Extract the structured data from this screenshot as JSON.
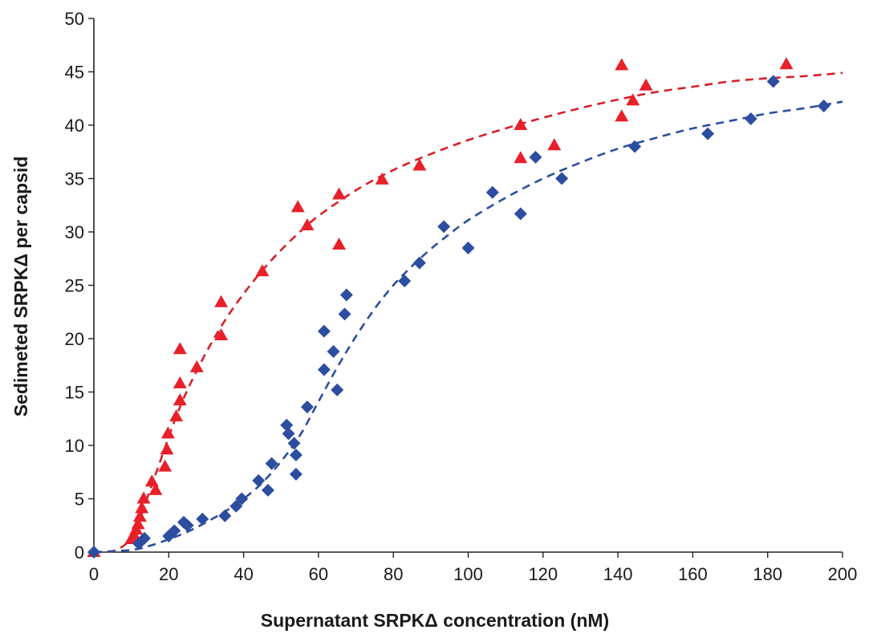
{
  "chart_data": {
    "type": "scatter",
    "title": "",
    "xlabel": "Supernatant SRPKΔ concentration  (nM)",
    "ylabel": "Sedimeted SRPKΔ per capsid",
    "xlim": [
      0,
      200
    ],
    "ylim": [
      0,
      50
    ],
    "xticks": [
      "0",
      "20",
      "40",
      "60",
      "80",
      "100",
      "120",
      "140",
      "160",
      "180",
      "200"
    ],
    "yticks": [
      "0",
      "5",
      "10",
      "15",
      "20",
      "25",
      "30",
      "35",
      "40",
      "45",
      "50"
    ],
    "grid": false,
    "legend": "none",
    "series": [
      {
        "marker": "triangle",
        "color": "#e8202a",
        "points": [
          [
            0,
            0
          ],
          [
            10,
            1.2
          ],
          [
            10.7,
            1.6
          ],
          [
            11.3,
            2.1
          ],
          [
            11.8,
            2.6
          ],
          [
            12.3,
            3.3
          ],
          [
            12.8,
            4.1
          ],
          [
            13.3,
            5.0
          ],
          [
            15.5,
            6.6
          ],
          [
            16.5,
            5.8
          ],
          [
            19,
            8.0
          ],
          [
            19.5,
            9.6
          ],
          [
            19.8,
            11.1
          ],
          [
            22,
            12.7
          ],
          [
            23,
            14.2
          ],
          [
            23,
            15.8
          ],
          [
            23,
            19.0
          ],
          [
            27.5,
            17.3
          ],
          [
            34,
            20.3
          ],
          [
            34,
            23.4
          ],
          [
            45,
            26.3
          ],
          [
            54.5,
            32.3
          ],
          [
            57,
            30.6
          ],
          [
            65.5,
            28.8
          ],
          [
            65.5,
            33.5
          ],
          [
            77,
            34.9
          ],
          [
            87,
            36.2
          ],
          [
            114,
            40.0
          ],
          [
            114,
            36.9
          ],
          [
            123,
            38.1
          ],
          [
            141,
            40.8
          ],
          [
            141,
            45.6
          ],
          [
            144,
            42.3
          ],
          [
            147.5,
            43.7
          ],
          [
            185,
            45.7
          ]
        ]
      },
      {
        "marker": "diamond",
        "color": "#2c4da0",
        "points": [
          [
            0,
            0
          ],
          [
            12,
            0.8
          ],
          [
            13.5,
            1.3
          ],
          [
            20,
            1.5
          ],
          [
            21.5,
            2.0
          ],
          [
            24,
            2.8
          ],
          [
            25,
            2.5
          ],
          [
            29,
            3.1
          ],
          [
            35,
            3.4
          ],
          [
            38,
            4.3
          ],
          [
            39.5,
            5.0
          ],
          [
            44,
            6.7
          ],
          [
            46.5,
            5.8
          ],
          [
            47.5,
            8.3
          ],
          [
            51.5,
            11.9
          ],
          [
            52,
            11.1
          ],
          [
            53.5,
            10.2
          ],
          [
            54,
            9.1
          ],
          [
            54,
            7.3
          ],
          [
            57,
            13.6
          ],
          [
            61.5,
            17.1
          ],
          [
            61.5,
            20.7
          ],
          [
            64,
            18.8
          ],
          [
            65,
            15.2
          ],
          [
            67,
            22.3
          ],
          [
            67.5,
            24.1
          ],
          [
            83,
            25.4
          ],
          [
            87,
            27.1
          ],
          [
            93.5,
            30.5
          ],
          [
            100,
            28.5
          ],
          [
            106.5,
            33.7
          ],
          [
            114,
            31.7
          ],
          [
            118,
            37.0
          ],
          [
            125,
            35.0
          ],
          [
            144.5,
            38.0
          ],
          [
            164,
            39.2
          ],
          [
            175.5,
            40.6
          ],
          [
            181.5,
            44.1
          ],
          [
            195,
            41.8
          ]
        ]
      }
    ],
    "fit_curves": [
      {
        "color": "#d8202a",
        "style": "dashed",
        "points": [
          [
            0,
            0
          ],
          [
            5,
            0.1
          ],
          [
            8,
            0.6
          ],
          [
            10,
            1.4
          ],
          [
            12,
            2.8
          ],
          [
            14,
            4.8
          ],
          [
            16,
            6.8
          ],
          [
            18,
            8.8
          ],
          [
            20,
            10.8
          ],
          [
            22,
            12.7
          ],
          [
            25,
            15.2
          ],
          [
            30,
            18.7
          ],
          [
            35,
            21.7
          ],
          [
            40,
            24.2
          ],
          [
            45,
            26.4
          ],
          [
            50,
            28.3
          ],
          [
            55,
            30.0
          ],
          [
            60,
            31.5
          ],
          [
            70,
            33.9
          ],
          [
            80,
            35.8
          ],
          [
            90,
            37.3
          ],
          [
            100,
            38.6
          ],
          [
            110,
            39.7
          ],
          [
            120,
            40.7
          ],
          [
            130,
            41.6
          ],
          [
            140,
            42.4
          ],
          [
            150,
            43.1
          ],
          [
            160,
            43.6
          ],
          [
            170,
            44.1
          ],
          [
            180,
            44.4
          ],
          [
            190,
            44.6
          ],
          [
            200,
            44.9
          ]
        ]
      },
      {
        "color": "#2c4da0",
        "style": "dashed",
        "points": [
          [
            0,
            0
          ],
          [
            10,
            0.2
          ],
          [
            15,
            0.6
          ],
          [
            20,
            1.2
          ],
          [
            25,
            1.9
          ],
          [
            30,
            2.8
          ],
          [
            35,
            3.8
          ],
          [
            40,
            5.0
          ],
          [
            45,
            6.5
          ],
          [
            50,
            8.5
          ],
          [
            55,
            10.9
          ],
          [
            60,
            14.1
          ],
          [
            65,
            17.3
          ],
          [
            70,
            20.2
          ],
          [
            75,
            22.8
          ],
          [
            80,
            25.0
          ],
          [
            85,
            26.8
          ],
          [
            90,
            28.4
          ],
          [
            95,
            29.8
          ],
          [
            100,
            31.1
          ],
          [
            110,
            33.2
          ],
          [
            120,
            35.0
          ],
          [
            130,
            36.5
          ],
          [
            140,
            37.8
          ],
          [
            150,
            38.8
          ],
          [
            160,
            39.7
          ],
          [
            170,
            40.4
          ],
          [
            180,
            41.1
          ],
          [
            190,
            41.6
          ],
          [
            200,
            42.2
          ]
        ]
      }
    ]
  }
}
